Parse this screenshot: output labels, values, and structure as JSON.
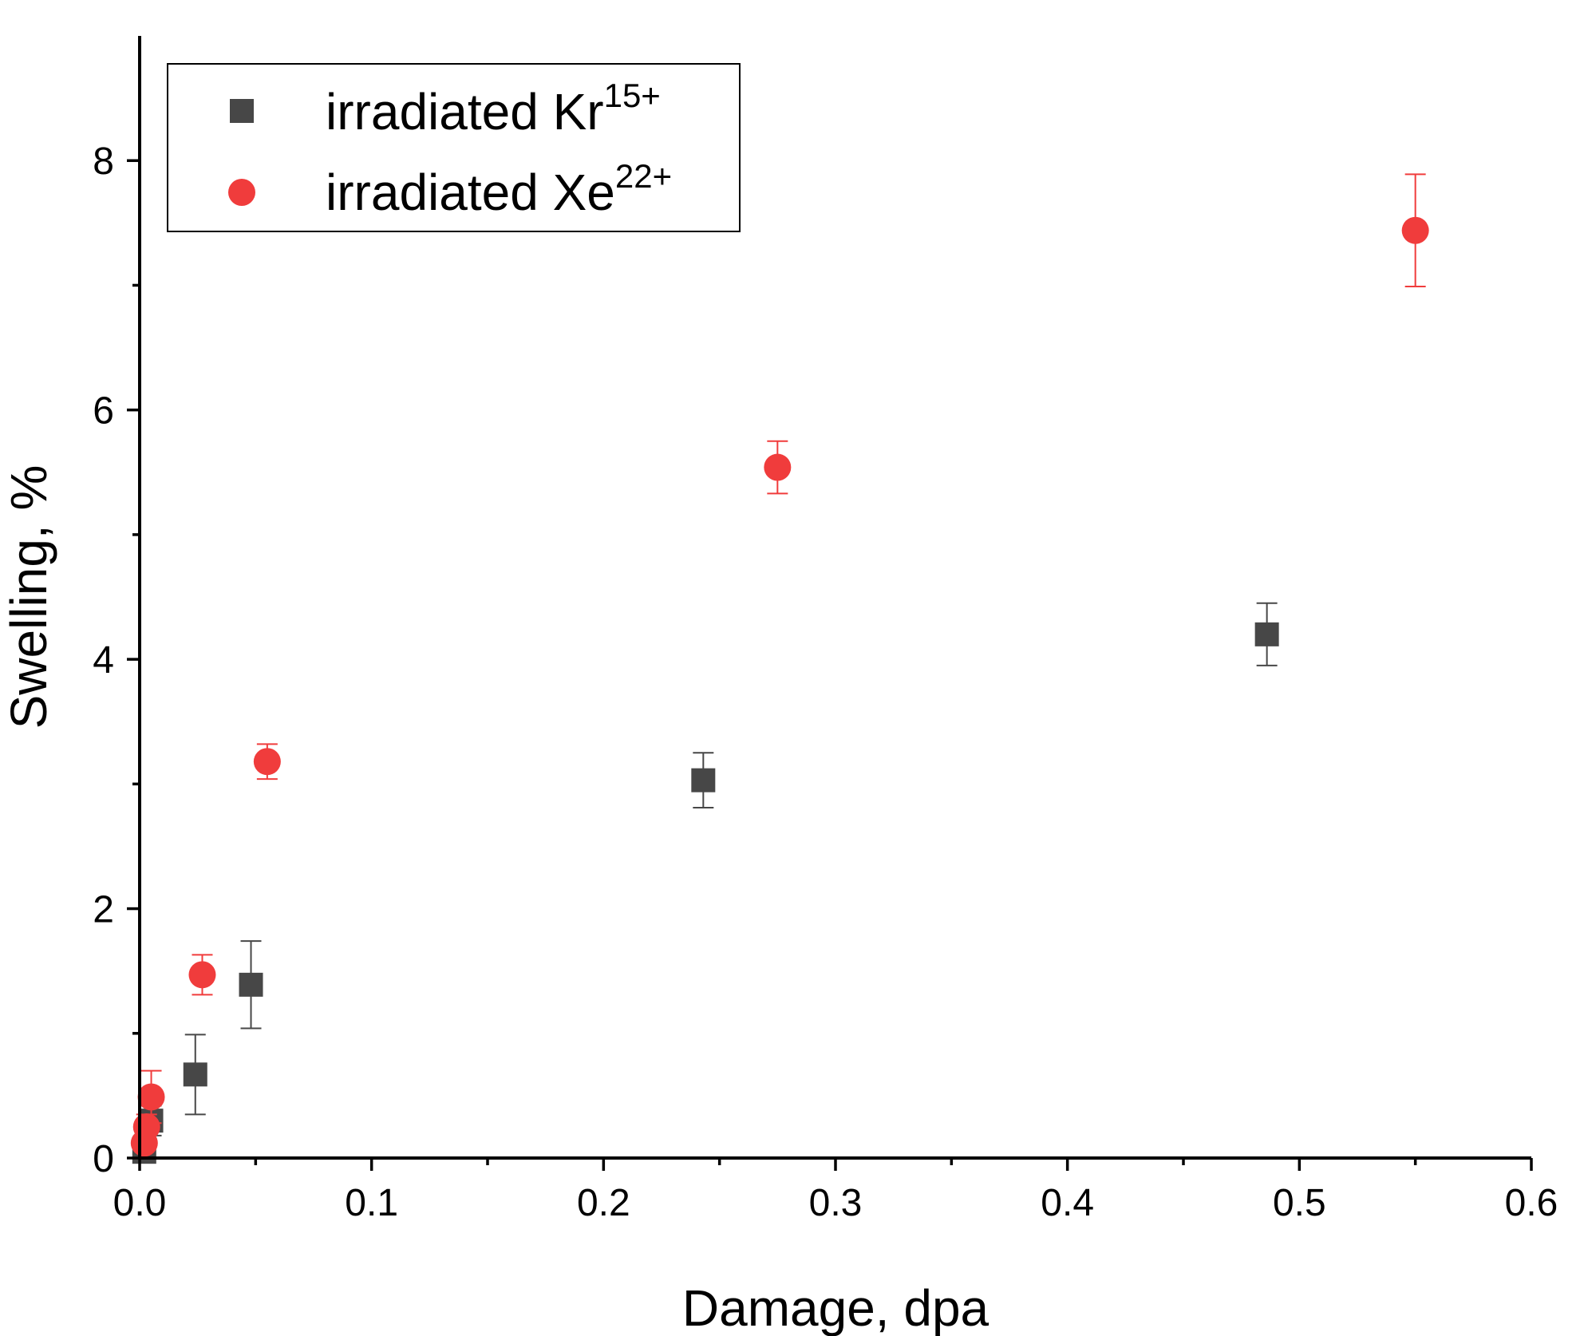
{
  "chart_data": {
    "type": "scatter",
    "title": "",
    "xlabel": "Damage, dpa",
    "ylabel": "Swelling, %",
    "xlim": [
      0,
      0.6
    ],
    "ylim": [
      0,
      9
    ],
    "xticks": [
      0.0,
      0.1,
      0.2,
      0.3,
      0.4,
      0.5,
      0.6
    ],
    "xtick_labels": [
      "0.0",
      "0.1",
      "0.2",
      "0.3",
      "0.4",
      "0.5",
      "0.6"
    ],
    "yticks": [
      0,
      2,
      4,
      6,
      8
    ],
    "ytick_labels": [
      "0",
      "2",
      "4",
      "6",
      "8"
    ],
    "legend_position": "top-left",
    "series": [
      {
        "name": "irradiated Kr",
        "name_superscript": "15+",
        "marker": "square",
        "color": "#474747",
        "points": [
          {
            "x": 0.002,
            "y": 0.05,
            "err": 0.05
          },
          {
            "x": 0.005,
            "y": 0.3,
            "err": 0.12
          },
          {
            "x": 0.024,
            "y": 0.67,
            "err": 0.32
          },
          {
            "x": 0.048,
            "y": 1.39,
            "err": 0.35
          },
          {
            "x": 0.243,
            "y": 3.03,
            "err": 0.22
          },
          {
            "x": 0.486,
            "y": 4.2,
            "err": 0.25
          }
        ]
      },
      {
        "name": "irradiated Xe",
        "name_superscript": "22+",
        "marker": "circle",
        "color": "#f03c3c",
        "points": [
          {
            "x": 0.002,
            "y": 0.12,
            "err": 0.06
          },
          {
            "x": 0.003,
            "y": 0.25,
            "err": 0.1
          },
          {
            "x": 0.005,
            "y": 0.49,
            "err": 0.21
          },
          {
            "x": 0.027,
            "y": 1.47,
            "err": 0.16
          },
          {
            "x": 0.055,
            "y": 3.18,
            "err": 0.14
          },
          {
            "x": 0.275,
            "y": 5.54,
            "err": 0.21
          },
          {
            "x": 0.55,
            "y": 7.44,
            "err": 0.45
          }
        ]
      }
    ]
  }
}
